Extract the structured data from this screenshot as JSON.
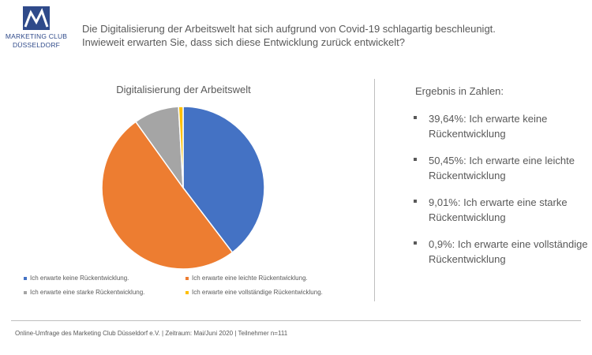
{
  "logo": {
    "name": "marketing-club-logo",
    "line1": "MARKETING CLUB",
    "line2": "DÜSSELDORF",
    "color": "#2f4a8a"
  },
  "headline": {
    "line1": "Die Digitalisierung  der Arbeitswelt  hat sich aufgrund  von Covid-19 schlagartig beschleunigt.",
    "line2": "Inwieweit erwarten Sie, dass sich diese Entwicklung zurück entwickelt?"
  },
  "chart_data": {
    "type": "pie",
    "title": "Digitalisierung der Arbeitswelt",
    "categories": [
      "Ich erwarte keine Rückentwicklung.",
      "Ich erwarte eine leichte Rückentwicklung.",
      "Ich erwarte eine starke Rückentwicklung.",
      "Ich erwarte eine vollständige Rückentwicklung."
    ],
    "values": [
      39.64,
      50.45,
      9.01,
      0.9
    ],
    "colors": [
      "#4472c4",
      "#ed7d31",
      "#a5a5a5",
      "#ffc000"
    ],
    "legend_position": "bottom",
    "start_angle": "12 o'clock, clockwise"
  },
  "results": {
    "title": "Ergebnis in Zahlen:",
    "items": [
      "39,64%:  Ich erwarte keine Rückentwicklung",
      "50,45%: Ich erwarte eine leichte Rückentwicklung",
      "9,01%: Ich erwarte eine starke Rückentwicklung",
      "0,9%: Ich erwarte eine vollständige Rückentwicklung"
    ]
  },
  "footer": {
    "text": "Online-Umfrage des Marketing Club Düsseldorf e.V. | Zeitraum: Mai/Juni 2020 | Teilnehmer n=111"
  }
}
